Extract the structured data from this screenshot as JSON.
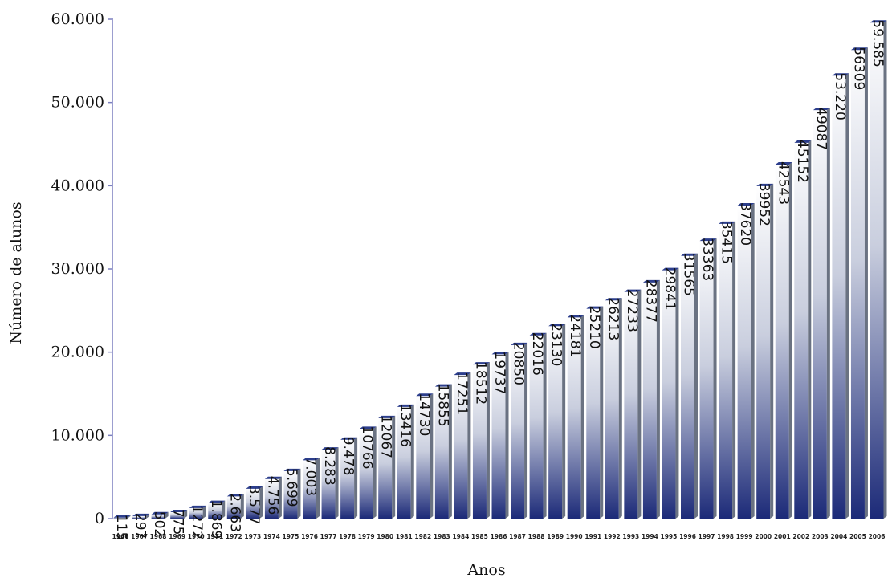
{
  "chart_data": {
    "type": "bar",
    "title": "",
    "xlabel": "Anos",
    "ylabel": "Número de alunos",
    "ylim": [
      0,
      60000
    ],
    "grid": false,
    "y_ticks": [
      "0",
      "10.000",
      "20.000",
      "30.000",
      "40.000",
      "50.000",
      "60.000"
    ],
    "categories": [
      "1966",
      "1967",
      "1968",
      "1969",
      "1970",
      "1971",
      "1972",
      "1973",
      "1974",
      "1975",
      "1976",
      "1977",
      "1978",
      "1979",
      "1980",
      "1981",
      "1982",
      "1983",
      "1984",
      "1985",
      "1986",
      "1987",
      "1988",
      "1989",
      "1990",
      "1991",
      "1992",
      "1993",
      "1994",
      "1995",
      "1996",
      "1997",
      "1998",
      "1999",
      "2000",
      "2001",
      "2002",
      "2003",
      "2004",
      "2005",
      "2006"
    ],
    "values": [
      115,
      297,
      502,
      775,
      1272,
      1869,
      2663,
      3577,
      4756,
      5699,
      7003,
      8283,
      9478,
      10766,
      12067,
      13416,
      14730,
      15855,
      17251,
      18512,
      19737,
      20850,
      22016,
      23130,
      24181,
      25210,
      26213,
      27233,
      28377,
      29841,
      31565,
      33363,
      35415,
      37620,
      39952,
      42543,
      45152,
      49087,
      53220,
      56309,
      59585
    ],
    "value_labels": [
      "115",
      "297",
      "502",
      "775",
      "1272",
      "1.869",
      "2.663",
      "3.577",
      "4.756",
      "5.699",
      "7.003",
      "8.283",
      "9.478",
      "10766",
      "12067",
      "13416",
      "14730",
      "15855",
      "17251",
      "18512",
      "19737",
      "20850",
      "22016",
      "23130",
      "24181",
      "25210",
      "26213",
      "27233",
      "28377",
      "29841",
      "31565",
      "33363",
      "35415",
      "37620",
      "39952",
      "42543",
      "45152",
      "49087",
      "53.220",
      "56309",
      "59.585"
    ],
    "colors": {
      "bar_top": "#ffffff",
      "bar_mid": "#c9cede",
      "bar_bottom": "#1c2a78",
      "bar_side": "#6a7282",
      "bar_cap": "#2c3e8c",
      "axis": "#7b7fbf"
    }
  }
}
